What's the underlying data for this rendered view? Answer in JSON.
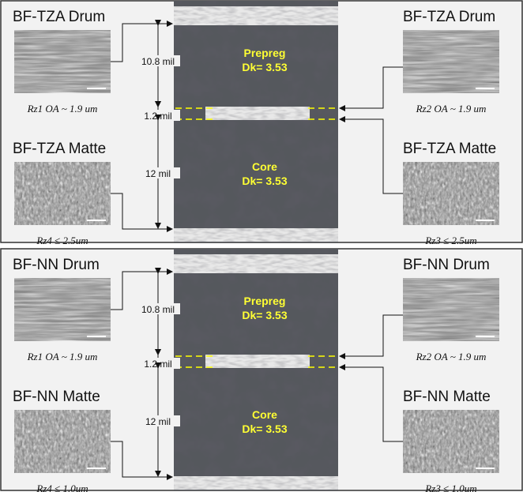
{
  "panels": [
    {
      "left": [
        {
          "title": "BF-TZA Drum",
          "caption": "Rz1 OA ~ 1.9 um"
        },
        {
          "title": "BF-TZA Matte",
          "caption": "Rz4  ≤ 2.5um"
        }
      ],
      "right": [
        {
          "title": "BF-TZA Drum",
          "caption": "Rz2 OA ~ 1.9 um"
        },
        {
          "title": "BF-TZA Matte",
          "caption": "Rz3  ≤ 2.5um"
        }
      ],
      "layers": [
        {
          "name": "Prepreg",
          "dk": "Dk= 3.53"
        },
        {
          "name": "Core",
          "dk": "Dk= 3.53"
        }
      ],
      "dims": [
        "10.8 mil",
        "1.2 mil",
        "12 mil"
      ]
    },
    {
      "left": [
        {
          "title": "BF-NN Drum",
          "caption": "Rz1 OA ~ 1.9 um"
        },
        {
          "title": "BF-NN Matte",
          "caption": "Rz4 ≤ 1.0um"
        }
      ],
      "right": [
        {
          "title": "BF-NN Drum",
          "caption": "Rz2 OA ~ 1.9 um"
        },
        {
          "title": "BF-NN Matte",
          "caption": "Rz3 ≤ 1.0um"
        }
      ],
      "layers": [
        {
          "name": "Prepreg",
          "dk": "Dk= 3.53"
        },
        {
          "name": "Core",
          "dk": "Dk= 3.53"
        }
      ],
      "dims": [
        "10.8 mil",
        "1.2 mil",
        "12 mil"
      ]
    }
  ]
}
